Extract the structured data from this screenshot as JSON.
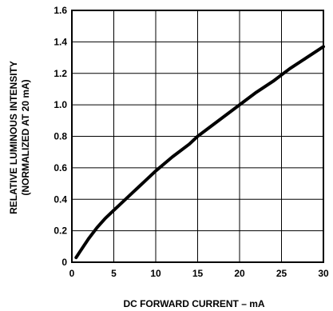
{
  "chart_data": {
    "type": "line",
    "title": "",
    "xlabel": "DC  FORWARD CURRENT – mA",
    "ylabel": [
      "RELATIVE LUMINOUS INTENSITY",
      "(NORMALIZED AT 20 mA)"
    ],
    "xlim": [
      0,
      30
    ],
    "ylim": [
      0,
      1.6
    ],
    "x_ticks": [
      "0",
      "5",
      "10",
      "15",
      "20",
      "25",
      "30"
    ],
    "y_ticks": [
      "0",
      "0.2",
      "0.4",
      "0.6",
      "0.8",
      "1.0",
      "1.2",
      "1.4",
      "1.6"
    ],
    "grid": true,
    "legend": "none",
    "line_color": "#000000",
    "series": [
      {
        "x": [
          0.5,
          1,
          2,
          3,
          4,
          5,
          6,
          7,
          8,
          9,
          10,
          12,
          14,
          15,
          16,
          18,
          20,
          22,
          24,
          25,
          26,
          28,
          30
        ],
        "y": [
          0.03,
          0.07,
          0.15,
          0.22,
          0.28,
          0.33,
          0.38,
          0.43,
          0.48,
          0.53,
          0.58,
          0.67,
          0.75,
          0.8,
          0.84,
          0.92,
          1.0,
          1.08,
          1.15,
          1.19,
          1.23,
          1.3,
          1.37
        ]
      }
    ]
  }
}
